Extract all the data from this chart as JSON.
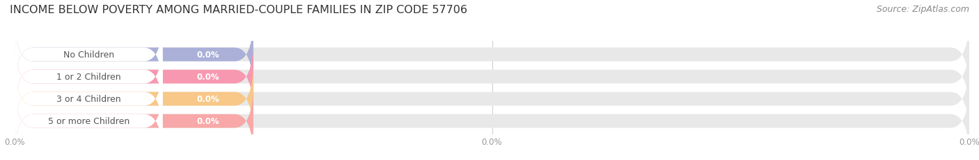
{
  "title": "INCOME BELOW POVERTY AMONG MARRIED-COUPLE FAMILIES IN ZIP CODE 57706",
  "source_text": "Source: ZipAtlas.com",
  "categories": [
    "No Children",
    "1 or 2 Children",
    "3 or 4 Children",
    "5 or more Children"
  ],
  "values": [
    0.0,
    0.0,
    0.0,
    0.0
  ],
  "bar_colors": [
    "#aab0d8",
    "#f898b0",
    "#f8c888",
    "#f8a8a8"
  ],
  "bar_bg_color": "#e8e8e8",
  "white_label_bg": "#ffffff",
  "background_color": "#ffffff",
  "title_fontsize": 11.5,
  "source_fontsize": 9,
  "label_fontsize": 9,
  "value_fontsize": 8.5,
  "bar_height": 0.62,
  "grid_color": "#d0d0d0",
  "label_color": "#555555",
  "value_color": "#ffffff",
  "tick_color": "#999999"
}
